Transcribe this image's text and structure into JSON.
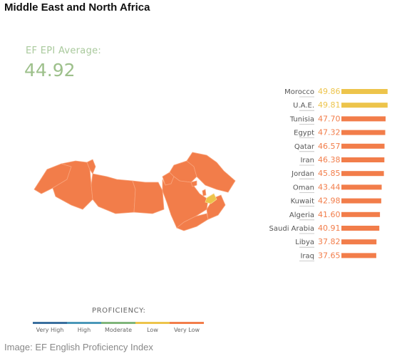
{
  "header": {
    "title": "Middle East and North Africa"
  },
  "average": {
    "label": "EF EPI Average:",
    "value": "44.92"
  },
  "chart_data": {
    "type": "bar",
    "orientation": "horizontal",
    "categories": [
      "Morocco",
      "U.A.E.",
      "Tunisia",
      "Egypt",
      "Qatar",
      "Iran",
      "Jordan",
      "Oman",
      "Kuwait",
      "Algeria",
      "Saudi Arabia",
      "Libya",
      "Iraq"
    ],
    "values": [
      49.86,
      49.81,
      47.7,
      47.32,
      46.57,
      46.38,
      45.85,
      43.44,
      42.98,
      41.6,
      40.91,
      37.82,
      37.65
    ],
    "value_labels": [
      "49.86",
      "49.81",
      "47.70",
      "47.32",
      "46.57",
      "46.38",
      "45.85",
      "43.44",
      "42.98",
      "41.60",
      "40.91",
      "37.82",
      "37.65"
    ],
    "proficiency": [
      "Low",
      "Low",
      "Very Low",
      "Very Low",
      "Very Low",
      "Very Low",
      "Very Low",
      "Very Low",
      "Very Low",
      "Very Low",
      "Very Low",
      "Very Low",
      "Very Low"
    ],
    "colors": {
      "Very High": "#3a6f9e",
      "High": "#4a97b8",
      "Moderate": "#7fb57a",
      "Low": "#edc44b",
      "Very Low": "#f27d4a"
    }
  },
  "legend": {
    "title": "PROFICIENCY:",
    "items": [
      {
        "label": "Very High",
        "color": "#3a6f9e"
      },
      {
        "label": "High",
        "color": "#4a97b8"
      },
      {
        "label": "Moderate",
        "color": "#7fb57a"
      },
      {
        "label": "Low",
        "color": "#edc44b"
      },
      {
        "label": "Very Low",
        "color": "#f27d4a"
      }
    ]
  },
  "caption": "Image: EF English Proficiency Index"
}
